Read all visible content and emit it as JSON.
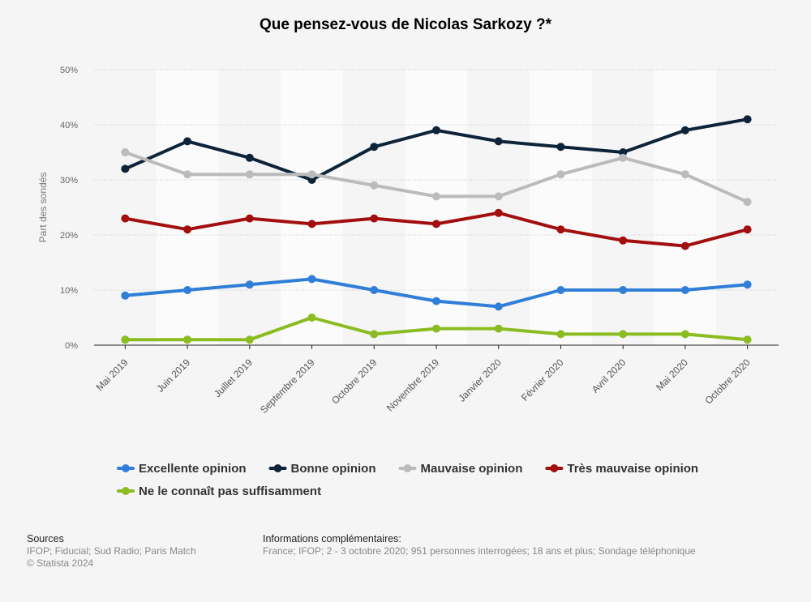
{
  "chart_data": {
    "type": "line",
    "title": "Que pensez-vous de Nicolas Sarkozy ?*",
    "ylabel": "Part des sondés",
    "xlabel": "",
    "ylim": [
      0,
      50
    ],
    "yticks": [
      "0%",
      "10%",
      "20%",
      "30%",
      "40%",
      "50%"
    ],
    "categories": [
      "Mai 2019",
      "Juin 2019",
      "Juillet 2019",
      "Septembre 2019",
      "Octobre 2019",
      "Novembre 2019",
      "Janvier 2020",
      "Février 2020",
      "Avril 2020",
      "Mai 2020",
      "Octobre 2020"
    ],
    "series": [
      {
        "name": "Excellente opinion",
        "color": "#2f7ed8",
        "values": [
          9,
          10,
          11,
          12,
          10,
          8,
          7,
          10,
          10,
          10,
          11
        ]
      },
      {
        "name": "Bonne opinion",
        "color": "#0d233a",
        "values": [
          32,
          37,
          34,
          30,
          36,
          39,
          37,
          36,
          35,
          39,
          41
        ]
      },
      {
        "name": "Mauvaise opinion",
        "color": "#bbbbbb",
        "values": [
          35,
          31,
          31,
          31,
          29,
          27,
          27,
          31,
          34,
          31,
          26
        ]
      },
      {
        "name": "Très mauvaise opinion",
        "color": "#a30e0e",
        "values": [
          23,
          21,
          23,
          22,
          23,
          22,
          24,
          21,
          19,
          18,
          21
        ]
      },
      {
        "name": "Ne le connaît pas suffisamment",
        "color": "#8bbc21",
        "values": [
          1,
          1,
          1,
          5,
          2,
          3,
          3,
          2,
          2,
          2,
          1
        ]
      }
    ],
    "grid": true,
    "legend_position": "bottom"
  },
  "footer": {
    "sources_heading": "Sources",
    "sources_line1": "IFOP; Fiducial; Sud Radio; Paris Match",
    "sources_line2": "© Statista 2024",
    "info_heading": "Informations complémentaires:",
    "info_text": "France; IFOP; 2 - 3 octobre 2020; 951 personnes interrogées; 18 ans et plus; Sondage téléphonique"
  }
}
